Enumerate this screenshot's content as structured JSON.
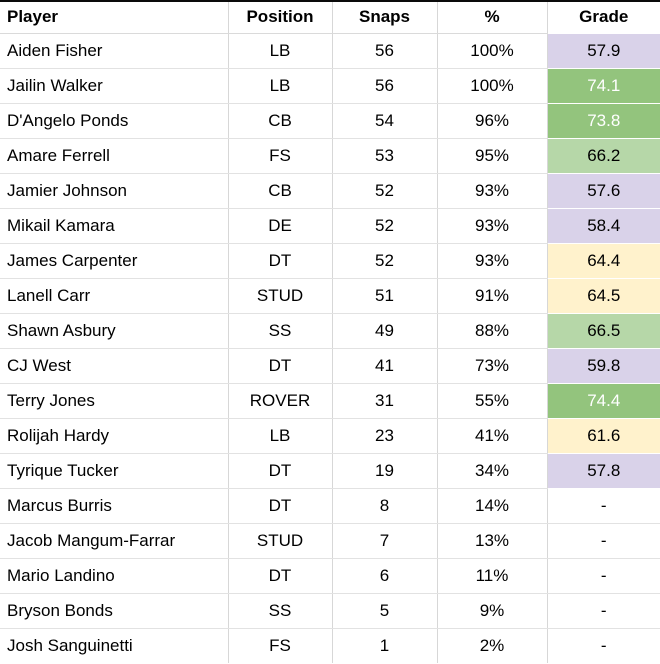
{
  "table": {
    "columns": [
      {
        "key": "player",
        "label": "Player",
        "align": "left"
      },
      {
        "key": "position",
        "label": "Position",
        "align": "center"
      },
      {
        "key": "snaps",
        "label": "Snaps",
        "align": "center"
      },
      {
        "key": "pct",
        "label": "%",
        "align": "center"
      },
      {
        "key": "grade",
        "label": "Grade",
        "align": "center"
      }
    ],
    "rows": [
      {
        "player": "Aiden Fisher",
        "position": "LB",
        "snaps": "56",
        "pct": "100%",
        "grade": "57.9",
        "grade_tier": "purple"
      },
      {
        "player": "Jailin Walker",
        "position": "LB",
        "snaps": "56",
        "pct": "100%",
        "grade": "74.1",
        "grade_tier": "green"
      },
      {
        "player": "D'Angelo Ponds",
        "position": "CB",
        "snaps": "54",
        "pct": "96%",
        "grade": "73.8",
        "grade_tier": "green"
      },
      {
        "player": "Amare Ferrell",
        "position": "FS",
        "snaps": "53",
        "pct": "95%",
        "grade": "66.2",
        "grade_tier": "light_green"
      },
      {
        "player": "Jamier Johnson",
        "position": "CB",
        "snaps": "52",
        "pct": "93%",
        "grade": "57.6",
        "grade_tier": "purple"
      },
      {
        "player": "Mikail Kamara",
        "position": "DE",
        "snaps": "52",
        "pct": "93%",
        "grade": "58.4",
        "grade_tier": "purple"
      },
      {
        "player": "James Carpenter",
        "position": "DT",
        "snaps": "52",
        "pct": "93%",
        "grade": "64.4",
        "grade_tier": "yellow"
      },
      {
        "player": "Lanell Carr",
        "position": "STUD",
        "snaps": "51",
        "pct": "91%",
        "grade": "64.5",
        "grade_tier": "yellow"
      },
      {
        "player": "Shawn Asbury",
        "position": "SS",
        "snaps": "49",
        "pct": "88%",
        "grade": "66.5",
        "grade_tier": "light_green"
      },
      {
        "player": "CJ West",
        "position": "DT",
        "snaps": "41",
        "pct": "73%",
        "grade": "59.8",
        "grade_tier": "purple"
      },
      {
        "player": "Terry Jones",
        "position": "ROVER",
        "snaps": "31",
        "pct": "55%",
        "grade": "74.4",
        "grade_tier": "green"
      },
      {
        "player": "Rolijah Hardy",
        "position": "LB",
        "snaps": "23",
        "pct": "41%",
        "grade": "61.6",
        "grade_tier": "yellow"
      },
      {
        "player": "Tyrique Tucker",
        "position": "DT",
        "snaps": "19",
        "pct": "34%",
        "grade": "57.8",
        "grade_tier": "purple"
      },
      {
        "player": "Marcus Burris",
        "position": "DT",
        "snaps": "8",
        "pct": "14%",
        "grade": "-",
        "grade_tier": "none"
      },
      {
        "player": "Jacob Mangum-Farrar",
        "position": "STUD",
        "snaps": "7",
        "pct": "13%",
        "grade": "-",
        "grade_tier": "none"
      },
      {
        "player": "Mario Landino",
        "position": "DT",
        "snaps": "6",
        "pct": "11%",
        "grade": "-",
        "grade_tier": "none"
      },
      {
        "player": "Bryson Bonds",
        "position": "SS",
        "snaps": "5",
        "pct": "9%",
        "grade": "-",
        "grade_tier": "none"
      },
      {
        "player": "Josh Sanguinetti",
        "position": "FS",
        "snaps": "1",
        "pct": "2%",
        "grade": "-",
        "grade_tier": "none"
      }
    ]
  },
  "colors": {
    "purple": "#d9d2e9",
    "yellow": "#fff2cc",
    "light_green": "#b6d7a8",
    "green": "#93c47d",
    "green_text": "#ffffff",
    "default_text": "#000000",
    "top_border": "#0a0a0a"
  }
}
